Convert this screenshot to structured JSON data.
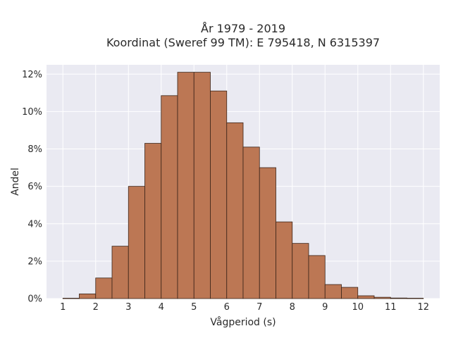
{
  "chart_data": {
    "type": "bar",
    "title": "År 1979 - 2019",
    "subtitle": "Koordinat (Sweref 99 TM): E 795418, N 6315397",
    "xlabel": "Vågperiod (s)",
    "ylabel": "Andel",
    "xlim": [
      0.5,
      12.5
    ],
    "ylim": [
      0,
      12.5
    ],
    "x_ticks": [
      1,
      2,
      3,
      4,
      5,
      6,
      7,
      8,
      9,
      10,
      11,
      12
    ],
    "y_ticks": [
      0,
      2,
      4,
      6,
      8,
      10,
      12
    ],
    "y_tick_suffix": "%",
    "grid": true,
    "bin_width": 0.5,
    "bins": [
      {
        "x0": 1.0,
        "value": 0.02
      },
      {
        "x0": 1.5,
        "value": 0.25
      },
      {
        "x0": 2.0,
        "value": 1.1
      },
      {
        "x0": 2.5,
        "value": 2.8
      },
      {
        "x0": 3.0,
        "value": 6.0
      },
      {
        "x0": 3.5,
        "value": 8.3
      },
      {
        "x0": 4.0,
        "value": 10.85
      },
      {
        "x0": 4.5,
        "value": 12.1
      },
      {
        "x0": 5.0,
        "value": 12.1
      },
      {
        "x0": 5.5,
        "value": 11.1
      },
      {
        "x0": 6.0,
        "value": 9.4
      },
      {
        "x0": 6.5,
        "value": 8.1
      },
      {
        "x0": 7.0,
        "value": 7.0
      },
      {
        "x0": 7.5,
        "value": 4.1
      },
      {
        "x0": 8.0,
        "value": 2.95
      },
      {
        "x0": 8.5,
        "value": 2.3
      },
      {
        "x0": 9.0,
        "value": 0.75
      },
      {
        "x0": 9.5,
        "value": 0.6
      },
      {
        "x0": 10.0,
        "value": 0.15
      },
      {
        "x0": 10.5,
        "value": 0.07
      },
      {
        "x0": 11.0,
        "value": 0.03
      },
      {
        "x0": 11.5,
        "value": 0.02
      }
    ],
    "colors": {
      "bar_fill": "#bc7754",
      "bar_edge": "#3a2418",
      "plot_background": "#eaeaf2",
      "grid": "#ffffff"
    }
  }
}
